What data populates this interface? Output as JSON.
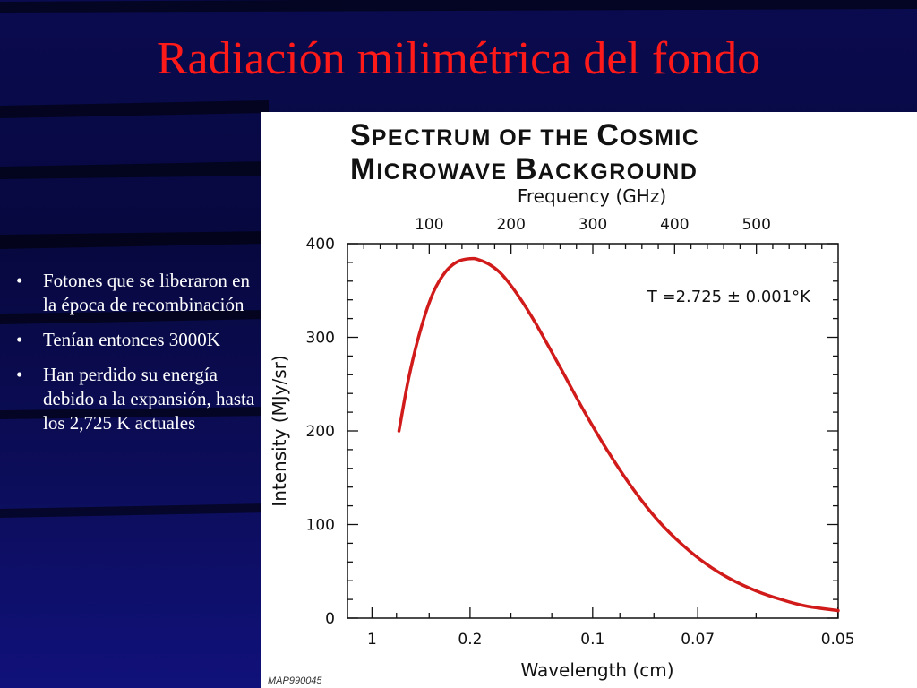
{
  "slide": {
    "title": "Radiación milimétrica del fondo",
    "bullets": [
      "Fotones que se liberaron en la época de recombinación",
      "Tenían entonces 3000K",
      "Han perdido su energía debido a la expansión, hasta los 2,725 K actuales"
    ],
    "bullet_symbol": "•",
    "colors": {
      "title": "#ff1a1a",
      "background": "#0a0a4a",
      "text": "#ffffff"
    }
  },
  "chart_data": {
    "type": "line",
    "title": "Spectrum of the Cosmic Microwave Background",
    "title_parts": [
      {
        "big": "S",
        "small": "PECTRUM OF THE "
      },
      {
        "big": "C",
        "small": "OSMIC"
      },
      {
        "big": "M",
        "small": "ICROWAVE "
      },
      {
        "big": "B",
        "small": "ACKGROUND"
      }
    ],
    "xlabel": "Wavelength (cm)",
    "x2label": "Frequency (GHz)",
    "ylabel": "Intensity (MJy/sr)",
    "ylim": [
      0,
      400
    ],
    "xlim_freq_ghz": [
      0,
      600
    ],
    "y_ticks": [
      "0",
      "100",
      "200",
      "300",
      "400"
    ],
    "x_ticks": [
      "1",
      "0.2",
      "0.1",
      "0.07",
      "0.05"
    ],
    "x_tick_values_cm": [
      1,
      0.2,
      0.1,
      0.07,
      0.05
    ],
    "x2_ticks": [
      "100",
      "200",
      "300",
      "400",
      "500"
    ],
    "x2_tick_values_ghz": [
      100,
      200,
      300,
      400,
      500
    ],
    "annotation": "T =2.725 ± 0.001°K",
    "credit": "MAP990045",
    "line_color": "#d11a1a",
    "grid": false,
    "series": [
      {
        "frequency_ghz": [
          63,
          75,
          90,
          105,
          120,
          135,
          150,
          160,
          175,
          190,
          210,
          230,
          260,
          290,
          320,
          350,
          380,
          410,
          440,
          470,
          500,
          530,
          560,
          600
        ],
        "values": [
          200,
          257,
          310,
          348,
          370,
          381,
          384,
          383,
          377,
          366,
          343,
          315,
          268,
          220,
          176,
          137,
          104,
          78,
          57,
          41,
          29,
          20,
          13,
          8
        ]
      }
    ]
  }
}
